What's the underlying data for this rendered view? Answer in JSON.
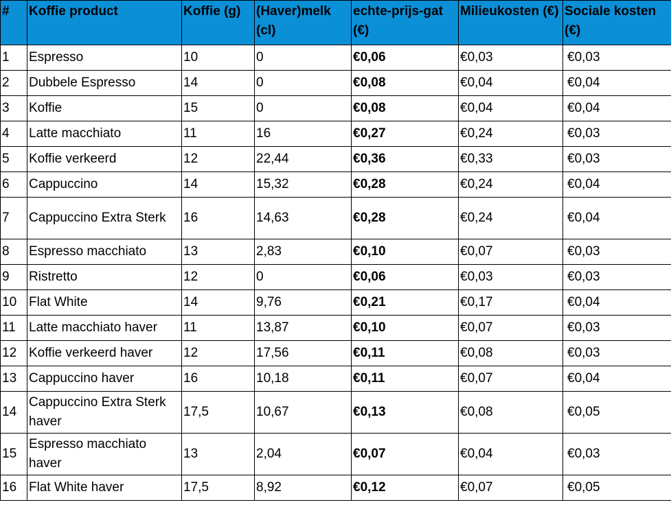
{
  "table": {
    "headers": [
      "#",
      "Koffie product",
      "Koffie (g)",
      "(Haver)melk (cl)",
      "echte-prijs-gat (€)",
      "Milieukosten (€)",
      "Sociale kosten (€)"
    ],
    "rows": [
      {
        "n": "1",
        "product": "Espresso",
        "coffee": "10",
        "milk": "0",
        "gap": "€0,06",
        "env": "€0,03",
        "soc": "€0,03",
        "tall": false
      },
      {
        "n": "2",
        "product": "Dubbele Espresso",
        "coffee": "14",
        "milk": "0",
        "gap": "€0,08",
        "env": "€0,04",
        "soc": "€0,04",
        "tall": false
      },
      {
        "n": "3",
        "product": "Koffie",
        "coffee": "15",
        "milk": "0",
        "gap": "€0,08",
        "env": "€0,04",
        "soc": "€0,04",
        "tall": false
      },
      {
        "n": "4",
        "product": "Latte macchiato",
        "coffee": "11",
        "milk": "16",
        "gap": "€0,27",
        "env": "€0,24",
        "soc": "€0,03",
        "tall": false
      },
      {
        "n": "5",
        "product": "Koffie verkeerd",
        "coffee": "12",
        "milk": "22,44",
        "gap": "€0,36",
        "env": "€0,33",
        "soc": "€0,03",
        "tall": false
      },
      {
        "n": "6",
        "product": "Cappuccino",
        "coffee": "14",
        "milk": "15,32",
        "gap": "€0,28",
        "env": "€0,24",
        "soc": "€0,04",
        "tall": false
      },
      {
        "n": "7",
        "product": "Cappuccino Extra Sterk",
        "coffee": "16",
        "milk": "14,63",
        "gap": "€0,28",
        "env": "€0,24",
        "soc": "€0,04",
        "tall": true
      },
      {
        "n": "8",
        "product": "Espresso macchiato",
        "coffee": "13",
        "milk": "2,83",
        "gap": "€0,10",
        "env": "€0,07",
        "soc": "€0,03",
        "tall": false
      },
      {
        "n": "9",
        "product": "Ristretto",
        "coffee": "12",
        "milk": "0",
        "gap": "€0,06",
        "env": "€0,03",
        "soc": "€0,03",
        "tall": false
      },
      {
        "n": "10",
        "product": "Flat White",
        "coffee": "14",
        "milk": "9,76",
        "gap": "€0,21",
        "env": "€0,17",
        "soc": "€0,04",
        "tall": false
      },
      {
        "n": "11",
        "product": "Latte macchiato haver",
        "coffee": "11",
        "milk": "13,87",
        "gap": "€0,10",
        "env": "€0,07",
        "soc": "€0,03",
        "tall": false
      },
      {
        "n": "12",
        "product": "Koffie verkeerd haver",
        "coffee": "12",
        "milk": "17,56",
        "gap": "€0,11",
        "env": "€0,08",
        "soc": "€0,03",
        "tall": false
      },
      {
        "n": "13",
        "product": "Cappuccino haver",
        "coffee": "16",
        "milk": "10,18",
        "gap": "€0,11",
        "env": "€0,07",
        "soc": "€0,04",
        "tall": false
      },
      {
        "n": "14",
        "product": "Cappuccino Extra Sterk haver",
        "coffee": "17,5",
        "milk": "10,67",
        "gap": "€0,13",
        "env": "€0,08",
        "soc": "€0,05",
        "tall": true
      },
      {
        "n": "15",
        "product": "Espresso macchiato haver",
        "coffee": "13",
        "milk": "2,04",
        "gap": "€0,07",
        "env": "€0,04",
        "soc": "€0,03",
        "tall": true
      },
      {
        "n": "16",
        "product": "Flat White haver",
        "coffee": "17,5",
        "milk": "8,92",
        "gap": "€0,12",
        "env": "€0,07",
        "soc": "€0,05",
        "tall": false
      }
    ]
  },
  "colors": {
    "header_bg": "#0b90d8",
    "border": "#000000"
  }
}
